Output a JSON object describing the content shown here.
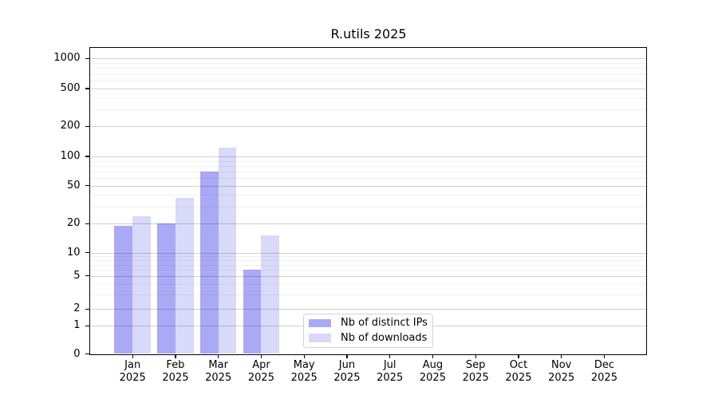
{
  "title": "R.utils 2025",
  "chart_data": {
    "type": "bar",
    "title": "R.utils 2025",
    "x": [
      "Jan 2025",
      "Feb 2025",
      "Mar 2025",
      "Apr 2025",
      "May 2025",
      "Jun 2025",
      "Jul 2025",
      "Aug 2025",
      "Sep 2025",
      "Oct 2025",
      "Nov 2025",
      "Dec 2025"
    ],
    "series": [
      {
        "name": "Nb of distinct IPs",
        "color": "#a9a9f6",
        "values": [
          19,
          20,
          70,
          6,
          0,
          0,
          0,
          0,
          0,
          0,
          0,
          0
        ]
      },
      {
        "name": "Nb of downloads",
        "color": "#d9d9f9",
        "values": [
          24,
          37,
          123,
          15,
          0,
          0,
          0,
          0,
          0,
          0,
          0,
          0
        ]
      }
    ],
    "yticks": [
      0,
      1,
      2,
      5,
      10,
      20,
      50,
      100,
      200,
      500,
      1000
    ],
    "yscale": "log-like with 0 baseline",
    "ylim": [
      0,
      1300
    ],
    "xlabel": "",
    "ylabel": "",
    "grid": "horizontal major and minor gridlines drawn over bars",
    "legend_position": "lower center-right inside plot"
  },
  "legend": {
    "items": [
      {
        "label": "Nb of distinct IPs"
      },
      {
        "label": "Nb of downloads"
      }
    ]
  }
}
